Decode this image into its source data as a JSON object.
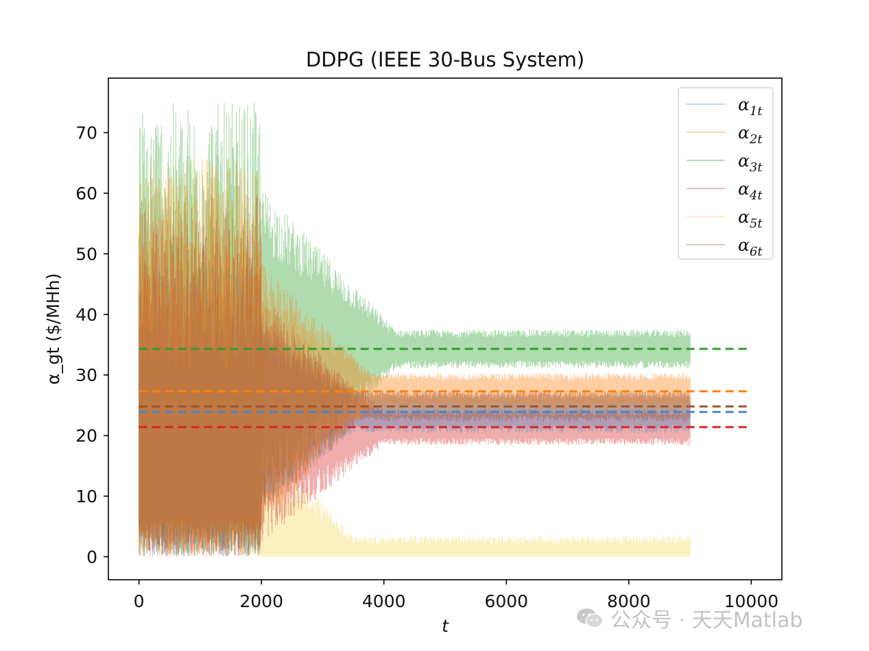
{
  "chart_data": {
    "type": "line",
    "title": "DDPG (IEEE 30-Bus System)",
    "xlabel": "t",
    "ylabel": "α_gt ($/MHh)",
    "xlim": [
      -500,
      10500
    ],
    "ylim": [
      -3.8,
      79
    ],
    "xticks": [
      0,
      2000,
      4000,
      6000,
      8000,
      10000
    ],
    "xtick_labels": [
      "0",
      "2000",
      "4000",
      "6000",
      "8000",
      "10000"
    ],
    "yticks": [
      0,
      10,
      20,
      30,
      40,
      50,
      60,
      70
    ],
    "ytick_labels": [
      "0",
      "10",
      "20",
      "30",
      "40",
      "50",
      "60",
      "70"
    ],
    "grid": false,
    "legend_position": "top-right",
    "noisy_series_end": 9000,
    "reference_line_end": 10000,
    "series": [
      {
        "name": "α1t",
        "legend_label": "α",
        "legend_sub": "1t",
        "color": "#4c84c4",
        "reference": 23.9,
        "settle_spread": 3.5,
        "early_max": 48,
        "clip_max": 48,
        "settle_time": 3500
      },
      {
        "name": "α2t",
        "legend_label": "α",
        "legend_sub": "2t",
        "color": "#ff7f0e",
        "reference": 27.3,
        "settle_spread": 3.0,
        "early_max": 66,
        "clip_max": 66,
        "settle_time": 3800
      },
      {
        "name": "α3t",
        "legend_label": "α",
        "legend_sub": "3t",
        "color": "#2ca02c",
        "reference": 34.3,
        "settle_spread": 3.2,
        "early_max": 75,
        "clip_max": 75,
        "settle_time": 4200
      },
      {
        "name": "α4t",
        "legend_label": "α",
        "legend_sub": "4t",
        "color": "#d62728",
        "reference": 21.4,
        "settle_spread": 3.0,
        "early_max": 54,
        "clip_max": 54,
        "settle_time": 4000
      },
      {
        "name": "α5t",
        "legend_label": "α",
        "legend_sub": "5t",
        "color": "#f1d75a",
        "reference": 0.0,
        "settle_spread": 3.5,
        "early_max": 66,
        "clip_max": 66,
        "settle_time": 3500
      },
      {
        "name": "α6t",
        "legend_label": "α",
        "legend_sub": "6t",
        "color": "#a0522d",
        "reference": 24.8,
        "settle_spread": 2.5,
        "early_max": 60,
        "clip_max": 60,
        "settle_time": 3600
      }
    ]
  },
  "watermark": {
    "text": "公众号 · 天天Matlab"
  }
}
